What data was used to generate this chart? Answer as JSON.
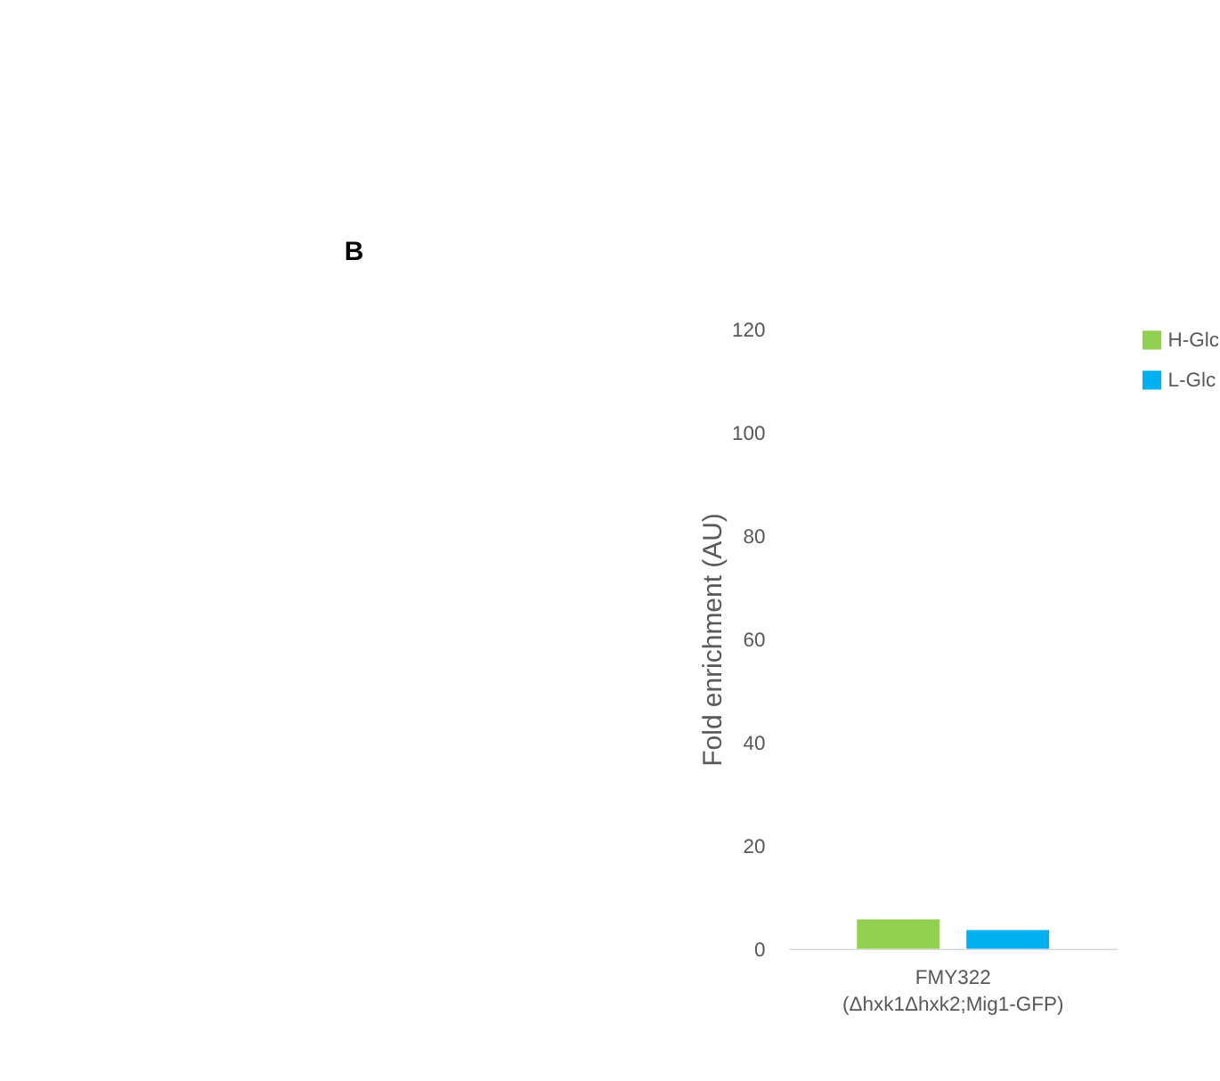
{
  "chart_data": {
    "type": "bar",
    "annotations": [
      "B"
    ],
    "ylabel": "Fold enrichment (AU)",
    "categories": [
      "FMY322\n(Δhxk1Δhxk2;Mig1-GFP)"
    ],
    "series": [
      {
        "name": "H-Glc",
        "color": "#92d050",
        "values": [
          5.7
        ]
      },
      {
        "name": "L-Glc",
        "color": "#00b0f0",
        "values": [
          3.6
        ]
      }
    ],
    "ylim": [
      0,
      120
    ],
    "yticks": [
      0,
      20,
      40,
      60,
      80,
      100,
      120
    ],
    "grid": false,
    "legend": "right"
  }
}
